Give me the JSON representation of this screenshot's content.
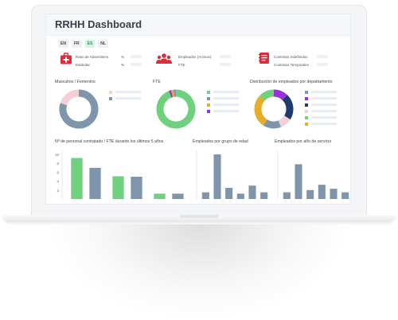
{
  "app": {
    "title": "RRHH Dashboard"
  },
  "languages": [
    {
      "label": "EN",
      "active": false
    },
    {
      "label": "FR",
      "active": false
    },
    {
      "label": "ES",
      "active": true
    },
    {
      "label": "NL",
      "active": false
    }
  ],
  "kpis": {
    "absentismo": {
      "rows": [
        {
          "label": "Ratio de Absentismo",
          "unit": "%"
        },
        {
          "label": "Estándar",
          "unit": "%"
        }
      ]
    },
    "empleados": {
      "rows": [
        {
          "label": "Empleados (Activos)"
        },
        {
          "label": "FTE"
        }
      ]
    },
    "contratos": {
      "rows": [
        {
          "label": "Contratos Indefinidos"
        },
        {
          "label": "Contratos Temporales"
        }
      ]
    }
  },
  "colors": {
    "blue": "#7f95ab",
    "pink": "#f4cfd6",
    "green": "#6fd17d",
    "yellow": "#e3ae2a",
    "purple": "#9a33d6",
    "navy": "#1f3c6e",
    "red": "#e02b3a"
  },
  "sections": {
    "gender": {
      "title": "Masculino / Femenino"
    },
    "fte": {
      "title": "FTE"
    },
    "dept": {
      "title": "Distribución de empleados por departamento"
    },
    "hired": {
      "title": "Nº de personal contratado / FTE durante los últimos 5 años"
    },
    "age": {
      "title": "Empleados por grupo de edad"
    },
    "service": {
      "title": "Empleados por año de servicio"
    }
  },
  "chart_data": [
    {
      "type": "pie",
      "id": "gender",
      "slices": [
        {
          "value": 80,
          "color": "#7f95ab"
        },
        {
          "value": 20,
          "color": "#f4cfd6"
        }
      ]
    },
    {
      "type": "pie",
      "id": "fte",
      "slices": [
        {
          "value": 94,
          "color": "#6fd17d"
        },
        {
          "value": 2,
          "color": "#9a33d6"
        },
        {
          "value": 2,
          "color": "#e3ae2a"
        },
        {
          "value": 2,
          "color": "#7f95ab"
        }
      ]
    },
    {
      "type": "pie",
      "id": "dept",
      "slices": [
        {
          "value": 12,
          "color": "#9a33d6"
        },
        {
          "value": 22,
          "color": "#1f3c6e"
        },
        {
          "value": 10,
          "color": "#f4cfd6"
        },
        {
          "value": 15,
          "color": "#7f95ab"
        },
        {
          "value": 28,
          "color": "#e3ae2a"
        },
        {
          "value": 13,
          "color": "#6fd17d"
        }
      ]
    },
    {
      "type": "bar",
      "id": "hired",
      "y_ticks": [
        "2",
        "4",
        "6",
        "8",
        "10"
      ],
      "ylim": [
        0,
        10
      ],
      "bars": [
        {
          "value": 9.2,
          "color": "#6fd17d"
        },
        {
          "value": 7,
          "color": "#7f95ab"
        },
        {
          "value": 5.1,
          "color": "#6fd17d"
        },
        {
          "value": 5,
          "color": "#7f95ab"
        },
        {
          "value": 1.2,
          "color": "#6fd17d"
        },
        {
          "value": 1.2,
          "color": "#7f95ab"
        }
      ]
    },
    {
      "type": "bar",
      "id": "age",
      "ylim": [
        0,
        10
      ],
      "bars": [
        {
          "value": 1.5,
          "color": "#7f95ab"
        },
        {
          "value": 10,
          "color": "#7f95ab"
        },
        {
          "value": 2.5,
          "color": "#7f95ab"
        },
        {
          "value": 1.2,
          "color": "#7f95ab"
        },
        {
          "value": 3,
          "color": "#7f95ab"
        },
        {
          "value": 1.5,
          "color": "#7f95ab"
        }
      ]
    },
    {
      "type": "bar",
      "id": "service",
      "ylim": [
        0,
        10
      ],
      "bars": [
        {
          "value": 1.5,
          "color": "#7f95ab"
        },
        {
          "value": 7.8,
          "color": "#7f95ab"
        },
        {
          "value": 2,
          "color": "#7f95ab"
        },
        {
          "value": 3.2,
          "color": "#7f95ab"
        },
        {
          "value": 2.3,
          "color": "#7f95ab"
        },
        {
          "value": 1.5,
          "color": "#7f95ab"
        }
      ]
    }
  ]
}
